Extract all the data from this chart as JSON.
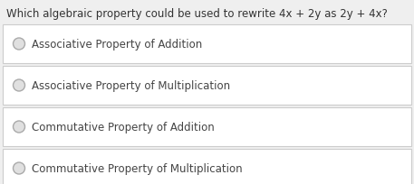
{
  "question": "Which algebraic property could be used to rewrite 4x + 2y as 2y + 4x?",
  "options": [
    "Associative Property of Addition",
    "Associative Property of Multiplication",
    "Commutative Property of Addition",
    "Commutative Property of Multiplication"
  ],
  "bg_color": "#efefef",
  "question_color": "#333333",
  "option_bg": "#ffffff",
  "option_border": "#cccccc",
  "option_color": "#444444",
  "radio_face": "#e0e0e0",
  "radio_edge": "#aaaaaa",
  "question_fontsize": 8.5,
  "option_fontsize": 8.5,
  "fig_width": 4.57,
  "fig_height": 2.05,
  "dpi": 100
}
